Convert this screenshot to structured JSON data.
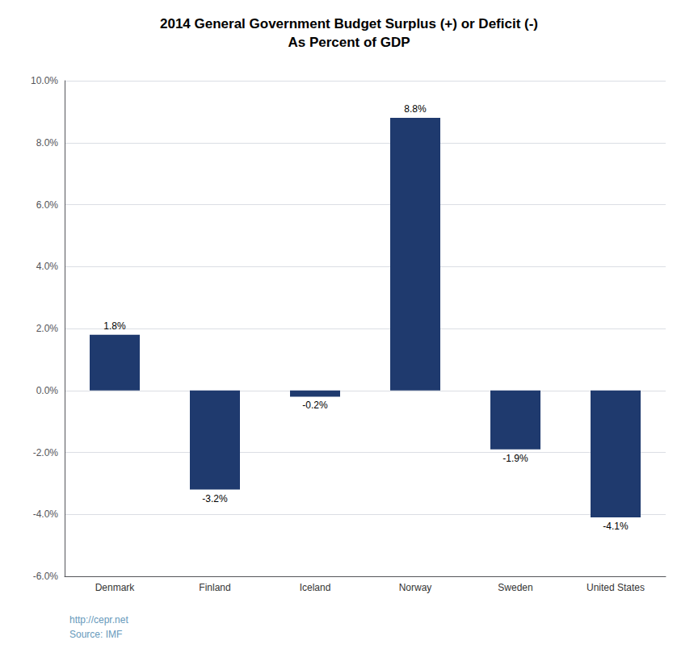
{
  "chart_data": {
    "type": "bar",
    "title": "2014 General Government Budget Surplus (+) or Deficit (-)",
    "subtitle": "As Percent of GDP",
    "categories": [
      "Denmark",
      "Finland",
      "Iceland",
      "Norway",
      "Sweden",
      "United States"
    ],
    "values": [
      1.8,
      -3.2,
      -0.2,
      8.8,
      -1.9,
      -4.1
    ],
    "value_labels": [
      "1.8%",
      "-3.2%",
      "-0.2%",
      "8.8%",
      "-1.9%",
      "-4.1%"
    ],
    "data_labels": true,
    "color": "#1F3A6E",
    "ylim": [
      -6.0,
      10.0
    ],
    "yticks": [
      {
        "value": -6.0,
        "label": "-6.0%"
      },
      {
        "value": -4.0,
        "label": "-4.0%"
      },
      {
        "value": -2.0,
        "label": "-2.0%"
      },
      {
        "value": 0.0,
        "label": "0.0%"
      },
      {
        "value": 2.0,
        "label": "2.0%"
      },
      {
        "value": 4.0,
        "label": "4.0%"
      },
      {
        "value": 6.0,
        "label": "6.0%"
      },
      {
        "value": 8.0,
        "label": "8.0%"
      },
      {
        "value": 10.0,
        "label": "10.0%"
      }
    ],
    "grid": true,
    "annotations": [
      "http://cepr.net",
      "Source: IMF"
    ]
  }
}
